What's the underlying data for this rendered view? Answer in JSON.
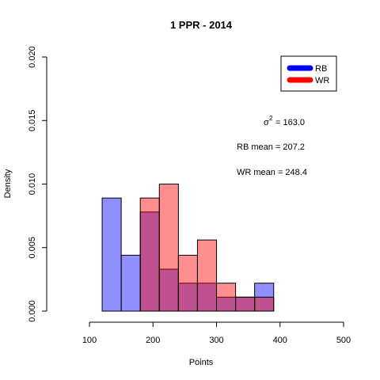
{
  "chart_data": {
    "type": "bar",
    "title": "1  PPR -  2014",
    "xlabel": "Points",
    "ylabel": "Density",
    "xlim": [
      100,
      500
    ],
    "ylim": [
      0,
      0.02
    ],
    "x_ticks": [
      "100",
      "200",
      "300",
      "400",
      "500"
    ],
    "y_ticks": [
      "0.000",
      "0.005",
      "0.010",
      "0.015",
      "0.020"
    ],
    "bin_edges": [
      120,
      150,
      180,
      210,
      240,
      270,
      300,
      330,
      360,
      390
    ],
    "series": [
      {
        "name": "RB",
        "color": "#0000ff",
        "fill": "rgba(0,0,255,0.44)",
        "values": [
          0.0089,
          0.0044,
          0.0078,
          0.0033,
          0.0022,
          0.0022,
          0.0011,
          0.0011,
          0.0022
        ]
      },
      {
        "name": "WR",
        "color": "#ff0000",
        "fill": "rgba(255,0,0,0.44)",
        "values": [
          0,
          0,
          0.0089,
          0.01,
          0.0044,
          0.0056,
          0.0022,
          0.0011,
          0.0011
        ]
      }
    ],
    "legend_position": "top-right",
    "annotations": {
      "variance_label": "σ",
      "variance_sup": "2",
      "variance_value": "=  163.0",
      "rb_mean": "RB mean = 207.2",
      "wr_mean": "WR mean = 248.4"
    }
  }
}
